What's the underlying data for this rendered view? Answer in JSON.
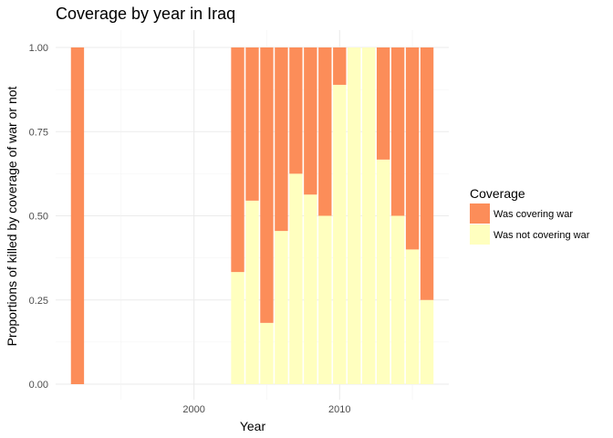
{
  "chart_data": {
    "type": "bar",
    "stacked": true,
    "title": "Coverage by year in Iraq",
    "xlabel": "Year",
    "ylabel": "Proportions of killed by coverage of war or not",
    "x": [
      1992,
      2003,
      2004,
      2005,
      2006,
      2007,
      2008,
      2009,
      2010,
      2011,
      2012,
      2013,
      2014,
      2015,
      2016
    ],
    "series": [
      {
        "name": "Was not covering war",
        "color": "#FFFFBF",
        "values": [
          0,
          0.333,
          0.545,
          0.182,
          0.455,
          0.625,
          0.563,
          0.5,
          0.889,
          1.0,
          1.0,
          0.667,
          0.5,
          0.4,
          0.25
        ]
      },
      {
        "name": "Was covering war",
        "color": "#FC8D59",
        "values": [
          1.0,
          0.667,
          0.455,
          0.818,
          0.545,
          0.375,
          0.437,
          0.5,
          0.111,
          0,
          0,
          0.333,
          0.5,
          0.6,
          0.75
        ]
      }
    ],
    "xlim": [
      1990.5,
      2017.5
    ],
    "ylim": [
      0,
      1
    ],
    "x_ticks": [
      2000,
      2010
    ],
    "x_tick_labels": [
      "2000",
      "2010"
    ],
    "y_ticks": [
      0,
      0.25,
      0.5,
      0.75,
      1.0
    ],
    "y_tick_labels": [
      "0.00",
      "0.25",
      "0.50",
      "0.75",
      "1.00"
    ],
    "grid": true,
    "legend": {
      "title": "Coverage",
      "position": "right",
      "entries": [
        {
          "label": "Was covering war",
          "color": "#FC8D59"
        },
        {
          "label": "Was not covering war",
          "color": "#FFFFBF"
        }
      ]
    }
  }
}
